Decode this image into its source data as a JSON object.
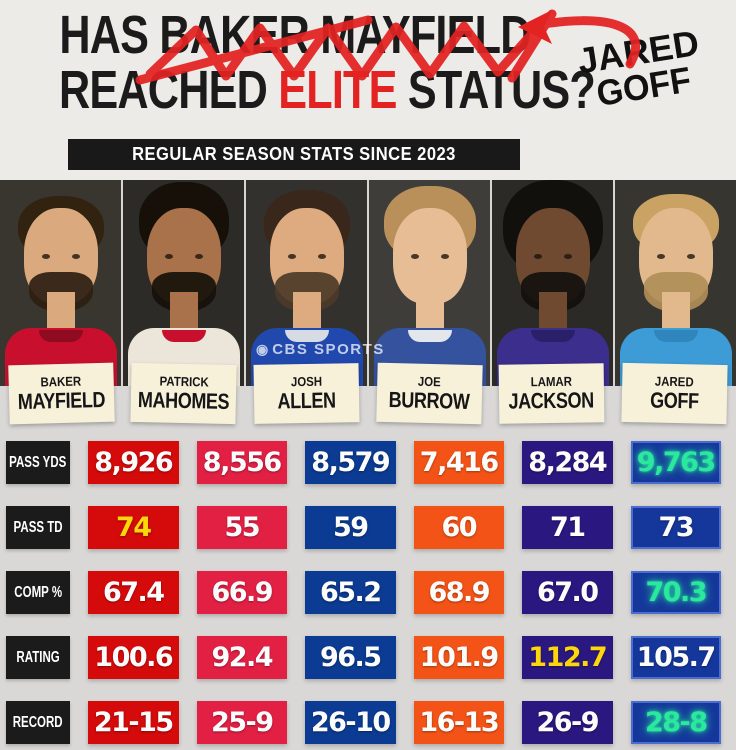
{
  "header": {
    "title_line1_prefix": "HAS ",
    "title_line1_crossed": "BAKER MAYFIELD",
    "title_line2_pre": "REACHED ",
    "title_line2_highlight": "ELITE",
    "title_line2_post": " STATUS?",
    "highlight_color": "#e32222",
    "annotation_line1": "JARED",
    "annotation_line2": "GOFF",
    "banner": "REGULAR SEASON STATS SINCE 2023"
  },
  "watermark": {
    "eye_icon": "◉",
    "text": "CBS SPORTS"
  },
  "players": [
    {
      "first": "BAKER",
      "last": "MAYFIELD",
      "box_color": "#d50a0a",
      "box_border": null,
      "photo": {
        "bg": "#39362f",
        "skin": "#dba97e",
        "hair": "#31230f",
        "beard": "#2e2012",
        "jersey": "#c8102e",
        "collar": "#8f0b20"
      }
    },
    {
      "first": "PATRICK",
      "last": "MAHOMES",
      "box_color": "#e22044",
      "box_border": null,
      "photo": {
        "bg": "#2d2b27",
        "skin": "#a9724a",
        "hair": "#161009",
        "beard": "#161009",
        "jersey": "#ece5d9",
        "collar": "#c8102e"
      }
    },
    {
      "first": "JOSH",
      "last": "ALLEN",
      "box_color": "#0b3b92",
      "box_border": null,
      "photo": {
        "bg": "#33312e",
        "skin": "#ddab7f",
        "hair": "#38271a",
        "beard": "#4c3a28",
        "jersey": "#2148ad",
        "collar": "#d6dbe4"
      }
    },
    {
      "first": "JOE",
      "last": "BURROW",
      "box_color": "#f45317",
      "box_border": null,
      "photo": {
        "bg": "#3f3d3a",
        "skin": "#e6bd94",
        "hair": "#b9905a",
        "beard": null,
        "jersey": "#35529e",
        "collar": "#e3e6ec"
      }
    },
    {
      "first": "LAMAR",
      "last": "JACKSON",
      "box_color": "#2a1880",
      "box_border": null,
      "photo": {
        "bg": "#2c2a27",
        "skin": "#6f4a31",
        "hair": "#12100d",
        "beard": "#12100d",
        "jersey": "#3b2e8c",
        "collar": "#2a2069"
      }
    },
    {
      "first": "JARED",
      "last": "GOFF",
      "box_color": "#15379b",
      "box_border": "#4d6cd0",
      "photo": {
        "bg": "#37352f",
        "skin": "#e2b98d",
        "hair": "#c9a264",
        "beard": "#b08e58",
        "jersey": "#3d9bd6",
        "collar": "#2f86bd"
      }
    }
  ],
  "stats": {
    "highlight_yellow": "#ffd60a",
    "highlight_green": "#2ae89e",
    "rows": [
      {
        "label": "PASS YDS",
        "values": [
          {
            "text": "8,926",
            "highlight": null
          },
          {
            "text": "8,556",
            "highlight": null
          },
          {
            "text": "8,579",
            "highlight": null
          },
          {
            "text": "7,416",
            "highlight": null
          },
          {
            "text": "8,284",
            "highlight": null
          },
          {
            "text": "9,763",
            "highlight": "green"
          }
        ]
      },
      {
        "label": "PASS TD",
        "values": [
          {
            "text": "74",
            "highlight": "yellow"
          },
          {
            "text": "55",
            "highlight": null
          },
          {
            "text": "59",
            "highlight": null
          },
          {
            "text": "60",
            "highlight": null
          },
          {
            "text": "71",
            "highlight": null
          },
          {
            "text": "73",
            "highlight": null
          }
        ]
      },
      {
        "label": "COMP %",
        "values": [
          {
            "text": "67.4",
            "highlight": null
          },
          {
            "text": "66.9",
            "highlight": null
          },
          {
            "text": "65.2",
            "highlight": null
          },
          {
            "text": "68.9",
            "highlight": null
          },
          {
            "text": "67.0",
            "highlight": null
          },
          {
            "text": "70.3",
            "highlight": "green"
          }
        ]
      },
      {
        "label": "RATING",
        "values": [
          {
            "text": "100.6",
            "highlight": null
          },
          {
            "text": "92.4",
            "highlight": null
          },
          {
            "text": "96.5",
            "highlight": null
          },
          {
            "text": "101.9",
            "highlight": null
          },
          {
            "text": "112.7",
            "highlight": "yellow"
          },
          {
            "text": "105.7",
            "highlight": null
          }
        ]
      },
      {
        "label": "RECORD",
        "values": [
          {
            "text": "21-15",
            "highlight": null
          },
          {
            "text": "25-9",
            "highlight": null
          },
          {
            "text": "26-10",
            "highlight": null
          },
          {
            "text": "16-13",
            "highlight": null
          },
          {
            "text": "26-9",
            "highlight": null
          },
          {
            "text": "28-8",
            "highlight": "green"
          }
        ]
      }
    ]
  },
  "chart_data": {
    "type": "table",
    "title": "HAS BAKER MAYFIELD REACHED ELITE STATUS? (\"BAKER MAYFIELD\" scribbled out, arrow to \"JARED GOFF\")",
    "subtitle": "REGULAR SEASON STATS SINCE 2023",
    "columns": [
      "Baker Mayfield",
      "Patrick Mahomes",
      "Josh Allen",
      "Joe Burrow",
      "Lamar Jackson",
      "Jared Goff"
    ],
    "rows": [
      {
        "stat": "PASS YDS",
        "values": [
          8926,
          8556,
          8579,
          7416,
          8284,
          9763
        ]
      },
      {
        "stat": "PASS TD",
        "values": [
          74,
          55,
          59,
          60,
          71,
          73
        ]
      },
      {
        "stat": "COMP %",
        "values": [
          67.4,
          66.9,
          65.2,
          68.9,
          67.0,
          70.3
        ]
      },
      {
        "stat": "RATING",
        "values": [
          100.6,
          92.4,
          96.5,
          101.9,
          112.7,
          105.7
        ]
      },
      {
        "stat": "RECORD",
        "values": [
          "21-15",
          "25-9",
          "26-10",
          "16-13",
          "26-9",
          "28-8"
        ]
      }
    ],
    "highlights": [
      {
        "stat": "PASS TD",
        "player": "Baker Mayfield",
        "value": 74,
        "style": "yellow"
      },
      {
        "stat": "RATING",
        "player": "Lamar Jackson",
        "value": 112.7,
        "style": "yellow"
      },
      {
        "stat": "PASS YDS",
        "player": "Jared Goff",
        "value": 9763,
        "style": "green-glow"
      },
      {
        "stat": "COMP %",
        "player": "Jared Goff",
        "value": 70.3,
        "style": "green-glow"
      },
      {
        "stat": "RECORD",
        "player": "Jared Goff",
        "value": "28-8",
        "style": "green-glow"
      }
    ],
    "source_watermark": "CBS SPORTS"
  }
}
